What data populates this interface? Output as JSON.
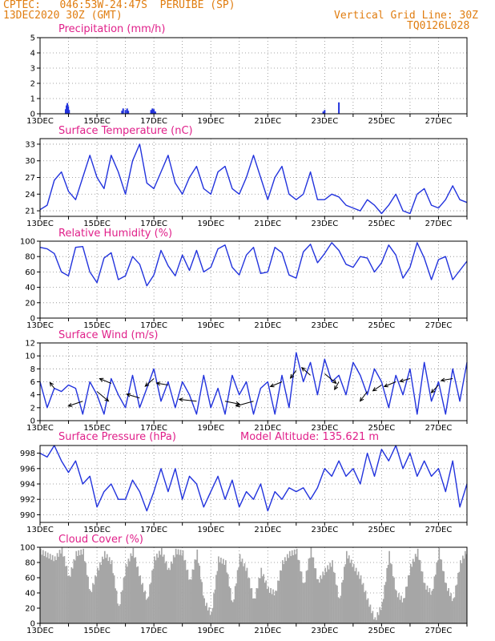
{
  "header": {
    "line1": "CPTEC:   046:53W-24:47S  PERUIBE (SP)",
    "line2": "13DEC2020 30Z (GMT)",
    "grid_note": "Vertical Grid Line: 30Z",
    "code": "TQ0126L028"
  },
  "colors": {
    "line": "#2233dd",
    "title": "#e0208a",
    "header": "#e07d10",
    "cloud": "#a6a6a6",
    "bar": "#2233dd"
  },
  "chart_data": [
    {
      "id": "precip",
      "type": "bar",
      "title": "Precipitation (mm/h)",
      "ylim": [
        0,
        5
      ],
      "yticks": [
        0,
        1,
        2,
        3,
        4,
        5
      ],
      "xlabels": [
        "13DEC",
        "15DEC",
        "17DEC",
        "19DEC",
        "21DEC",
        "23DEC",
        "25DEC",
        "27DEC"
      ],
      "x_day_range": [
        0,
        15
      ],
      "bars": [
        {
          "day": 0.9,
          "value": 0.3
        },
        {
          "day": 0.93,
          "value": 0.55
        },
        {
          "day": 0.96,
          "value": 0.7
        },
        {
          "day": 0.99,
          "value": 0.5
        },
        {
          "day": 1.02,
          "value": 0.25
        },
        {
          "day": 2.88,
          "value": 0.2
        },
        {
          "day": 2.92,
          "value": 0.35
        },
        {
          "day": 3.0,
          "value": 0.25
        },
        {
          "day": 3.06,
          "value": 0.35
        },
        {
          "day": 3.1,
          "value": 0.2
        },
        {
          "day": 3.9,
          "value": 0.25
        },
        {
          "day": 3.95,
          "value": 0.35
        },
        {
          "day": 4.0,
          "value": 0.3
        },
        {
          "day": 4.05,
          "value": 0.15
        },
        {
          "day": 9.95,
          "value": 0.15
        },
        {
          "day": 10.0,
          "value": 0.25
        },
        {
          "day": 10.5,
          "value": 0.75
        }
      ]
    },
    {
      "id": "temp",
      "type": "line",
      "title": "Surface Temperature (nC)",
      "ylim": [
        20,
        34
      ],
      "yticks": [
        21,
        24,
        27,
        30,
        33
      ],
      "xlabels": [
        "13DEC",
        "15DEC",
        "17DEC",
        "19DEC",
        "21DEC",
        "23DEC",
        "25DEC",
        "27DEC"
      ],
      "x_day_range": [
        0,
        15
      ],
      "days": [
        0,
        0.25,
        0.5,
        0.75,
        1,
        1.25,
        1.5,
        1.75,
        2,
        2.25,
        2.5,
        2.75,
        3,
        3.25,
        3.5,
        3.75,
        4,
        4.25,
        4.5,
        4.75,
        5,
        5.25,
        5.5,
        5.75,
        6,
        6.25,
        6.5,
        6.75,
        7,
        7.25,
        7.5,
        7.75,
        8,
        8.25,
        8.5,
        8.75,
        9,
        9.25,
        9.5,
        9.75,
        10,
        10.25,
        10.5,
        10.75,
        11,
        11.25,
        11.5,
        11.75,
        12,
        12.25,
        12.5,
        12.75,
        13,
        13.25,
        13.5,
        13.75,
        14,
        14.25,
        14.5,
        14.75,
        15
      ],
      "values": [
        21.2,
        22,
        26.5,
        28,
        24.5,
        23,
        27,
        31,
        27,
        25,
        31,
        28,
        24,
        30,
        33,
        26,
        25,
        28,
        31,
        26,
        24,
        27,
        29,
        25,
        24,
        28,
        29,
        25,
        24,
        27,
        31,
        27,
        23,
        27,
        29,
        24,
        23,
        24,
        28,
        23,
        23,
        24,
        23.5,
        22,
        21.5,
        21,
        23,
        22,
        20.5,
        22,
        24,
        21,
        20.5,
        24,
        25,
        22,
        21.5,
        23,
        25.5,
        23,
        22.5
      ]
    },
    {
      "id": "rh",
      "type": "line",
      "title": "Relative Humidity (%)",
      "ylim": [
        0,
        100
      ],
      "yticks": [
        0,
        20,
        40,
        60,
        80,
        100
      ],
      "xlabels": [
        "13DEC",
        "15DEC",
        "17DEC",
        "19DEC",
        "21DEC",
        "23DEC",
        "25DEC",
        "27DEC"
      ],
      "x_day_range": [
        0,
        15
      ],
      "days": [
        0,
        0.25,
        0.5,
        0.75,
        1,
        1.25,
        1.5,
        1.75,
        2,
        2.25,
        2.5,
        2.75,
        3,
        3.25,
        3.5,
        3.75,
        4,
        4.25,
        4.5,
        4.75,
        5,
        5.25,
        5.5,
        5.75,
        6,
        6.25,
        6.5,
        6.75,
        7,
        7.25,
        7.5,
        7.75,
        8,
        8.25,
        8.5,
        8.75,
        9,
        9.25,
        9.5,
        9.75,
        10,
        10.25,
        10.5,
        10.75,
        11,
        11.25,
        11.5,
        11.75,
        12,
        12.25,
        12.5,
        12.75,
        13,
        13.25,
        13.5,
        13.75,
        14,
        14.25,
        14.5,
        14.75,
        15
      ],
      "values": [
        92,
        90,
        84,
        60,
        55,
        92,
        93,
        60,
        46,
        78,
        85,
        50,
        55,
        80,
        70,
        42,
        56,
        88,
        68,
        55,
        82,
        62,
        88,
        60,
        66,
        90,
        95,
        66,
        56,
        82,
        92,
        58,
        60,
        92,
        85,
        56,
        52,
        86,
        96,
        72,
        84,
        98,
        88,
        70,
        66,
        80,
        78,
        60,
        72,
        95,
        82,
        52,
        66,
        98,
        78,
        50,
        76,
        80,
        50,
        62,
        74
      ]
    },
    {
      "id": "wind",
      "type": "line",
      "title": "Surface Wind (m/s)",
      "ylim": [
        0,
        12
      ],
      "yticks": [
        0,
        2,
        4,
        6,
        8,
        10,
        12
      ],
      "xlabels": [
        "13DEC",
        "15DEC",
        "17DEC",
        "19DEC",
        "21DEC",
        "23DEC",
        "25DEC",
        "27DEC"
      ],
      "x_day_range": [
        0,
        15
      ],
      "days": [
        0,
        0.25,
        0.5,
        0.75,
        1,
        1.25,
        1.5,
        1.75,
        2,
        2.25,
        2.5,
        2.75,
        3,
        3.25,
        3.5,
        3.75,
        4,
        4.25,
        4.5,
        4.75,
        5,
        5.25,
        5.5,
        5.75,
        6,
        6.25,
        6.5,
        6.75,
        7,
        7.25,
        7.5,
        7.75,
        8,
        8.25,
        8.5,
        8.75,
        9,
        9.25,
        9.5,
        9.75,
        10,
        10.25,
        10.5,
        10.75,
        11,
        11.25,
        11.5,
        11.75,
        12,
        12.25,
        12.5,
        12.75,
        13,
        13.25,
        13.5,
        13.75,
        14,
        14.25,
        14.5,
        14.75,
        15
      ],
      "values": [
        6,
        2,
        5,
        4.5,
        5.5,
        5,
        1,
        6,
        4,
        1,
        6.5,
        4,
        2,
        7,
        2,
        5,
        8,
        3,
        6,
        2,
        6,
        4,
        1,
        7,
        2,
        5,
        1,
        7,
        4,
        6,
        1,
        5,
        6,
        1,
        7,
        2,
        10.5,
        6,
        9,
        4,
        9.5,
        6,
        7,
        4,
        9,
        7,
        4,
        8,
        6,
        2,
        7,
        4,
        8,
        1,
        9,
        3,
        6,
        1,
        8,
        3,
        9
      ],
      "arrows": [
        {
          "day": 0.5,
          "dx": -3,
          "dy": -6
        },
        {
          "day": 1.5,
          "dx": -10,
          "dy": 5
        },
        {
          "day": 2.0,
          "dx": 8,
          "dy": 10
        },
        {
          "day": 2.5,
          "dx": -8,
          "dy": -5
        },
        {
          "day": 3.5,
          "dx": -9,
          "dy": -4
        },
        {
          "day": 4.0,
          "dx": -6,
          "dy": 8
        },
        {
          "day": 4.5,
          "dx": -8,
          "dy": -2
        },
        {
          "day": 5.5,
          "dx": -12,
          "dy": -2
        },
        {
          "day": 6.5,
          "dx": 10,
          "dy": 3
        },
        {
          "day": 7.5,
          "dx": -12,
          "dy": 5
        },
        {
          "day": 8.5,
          "dx": -8,
          "dy": 5
        },
        {
          "day": 9.0,
          "dx": -4,
          "dy": 8
        },
        {
          "day": 9.5,
          "dx": -6,
          "dy": -8
        },
        {
          "day": 10.0,
          "dx": 8,
          "dy": 10
        },
        {
          "day": 10.5,
          "dx": -3,
          "dy": 8
        },
        {
          "day": 11.5,
          "dx": -5,
          "dy": 10
        },
        {
          "day": 12.0,
          "dx": -6,
          "dy": 6
        },
        {
          "day": 12.5,
          "dx": -8,
          "dy": 5
        },
        {
          "day": 13.0,
          "dx": -7,
          "dy": 3
        },
        {
          "day": 14.0,
          "dx": -5,
          "dy": 8
        },
        {
          "day": 14.5,
          "dx": -8,
          "dy": 2
        }
      ]
    },
    {
      "id": "press",
      "type": "line",
      "title": "Surface Pressure (hPa)",
      "subtitle": "Model Altitude: 135.621 m",
      "ylim": [
        989,
        999
      ],
      "yticks": [
        990,
        992,
        994,
        996,
        998
      ],
      "xlabels": [
        "13DEC",
        "15DEC",
        "17DEC",
        "19DEC",
        "21DEC",
        "23DEC",
        "25DEC",
        "27DEC"
      ],
      "x_day_range": [
        0,
        15
      ],
      "days": [
        0,
        0.25,
        0.5,
        0.75,
        1,
        1.25,
        1.5,
        1.75,
        2,
        2.25,
        2.5,
        2.75,
        3,
        3.25,
        3.5,
        3.75,
        4,
        4.25,
        4.5,
        4.75,
        5,
        5.25,
        5.5,
        5.75,
        6,
        6.25,
        6.5,
        6.75,
        7,
        7.25,
        7.5,
        7.75,
        8,
        8.25,
        8.5,
        8.75,
        9,
        9.25,
        9.5,
        9.75,
        10,
        10.25,
        10.5,
        10.75,
        11,
        11.25,
        11.5,
        11.75,
        12,
        12.25,
        12.5,
        12.75,
        13,
        13.25,
        13.5,
        13.75,
        14,
        14.25,
        14.5,
        14.75,
        15
      ],
      "values": [
        998,
        997.5,
        999,
        997,
        995.5,
        997,
        994,
        995,
        991,
        993,
        994,
        992,
        992,
        994.5,
        993,
        990.5,
        993,
        996,
        993,
        996,
        992,
        995,
        994,
        991,
        993,
        995,
        992,
        994.5,
        991,
        993,
        992,
        994,
        990.5,
        993,
        992,
        993.5,
        993,
        993.5,
        992,
        993.5,
        996,
        995,
        997,
        995,
        996,
        994,
        998,
        995,
        998.5,
        997,
        999,
        996,
        998,
        995,
        997,
        995,
        996,
        993,
        997,
        991,
        994
      ]
    },
    {
      "id": "cloud",
      "type": "area",
      "title": "Cloud Cover (%)",
      "ylim": [
        0,
        100
      ],
      "yticks": [
        0,
        20,
        40,
        60,
        80,
        100
      ],
      "xlabels": [
        "13DEC",
        "15DEC",
        "17DEC",
        "19DEC",
        "21DEC",
        "23DEC",
        "25DEC",
        "27DEC"
      ],
      "x_day_range": [
        0,
        15
      ],
      "days": [
        0,
        0.25,
        0.5,
        0.75,
        1,
        1.25,
        1.5,
        1.75,
        2,
        2.25,
        2.5,
        2.75,
        3,
        3.25,
        3.5,
        3.75,
        4,
        4.25,
        4.5,
        4.75,
        5,
        5.25,
        5.5,
        5.75,
        6,
        6.25,
        6.5,
        6.75,
        7,
        7.25,
        7.5,
        7.75,
        8,
        8.25,
        8.5,
        8.75,
        9,
        9.25,
        9.5,
        9.75,
        10,
        10.25,
        10.5,
        10.75,
        11,
        11.25,
        11.5,
        11.75,
        12,
        12.25,
        12.5,
        12.75,
        13,
        13.25,
        13.5,
        13.75,
        14,
        14.25,
        14.5,
        14.75,
        15
      ],
      "values": [
        95,
        90,
        85,
        98,
        60,
        92,
        95,
        40,
        70,
        92,
        80,
        20,
        75,
        96,
        60,
        30,
        85,
        96,
        70,
        95,
        93,
        55,
        94,
        30,
        12,
        85,
        80,
        25,
        88,
        70,
        30,
        70,
        45,
        40,
        80,
        92,
        95,
        50,
        98,
        55,
        70,
        80,
        30,
        92,
        75,
        60,
        30,
        5,
        25,
        92,
        40,
        30,
        75,
        95,
        50,
        40,
        96,
        50,
        30,
        80,
        98
      ]
    }
  ]
}
